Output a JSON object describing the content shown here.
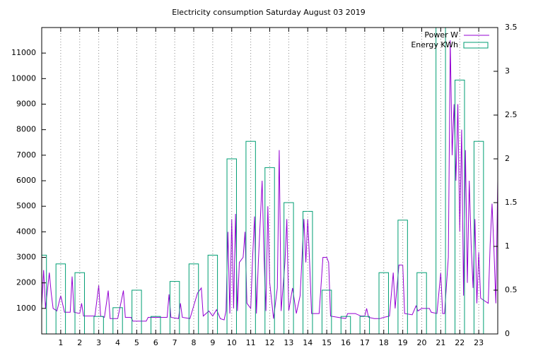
{
  "chart_data": {
    "type": "line",
    "title": "Electricity consumption Saturday August 03 2019",
    "xlim": [
      0,
      24
    ],
    "xticks": [
      1,
      2,
      3,
      4,
      5,
      6,
      7,
      8,
      9,
      10,
      11,
      12,
      13,
      14,
      15,
      16,
      17,
      18,
      19,
      20,
      21,
      22,
      23
    ],
    "ylim": [
      0,
      12000
    ],
    "yticks": [
      1000,
      2000,
      3000,
      4000,
      5000,
      6000,
      7000,
      8000,
      9000,
      10000,
      11000
    ],
    "y2lim": [
      0,
      3.5
    ],
    "y2ticks": [
      0,
      0.5,
      1,
      1.5,
      2,
      2.5,
      3,
      3.5
    ],
    "grid": "x",
    "legend": "top-right",
    "series": [
      {
        "name": "Power W",
        "type": "line",
        "color": "#9400d3",
        "x": [
          0,
          0.1,
          0.2,
          0.4,
          0.5,
          0.6,
          0.8,
          1.0,
          1.2,
          1.5,
          1.6,
          1.7,
          2.0,
          2.1,
          2.2,
          2.8,
          3.0,
          3.1,
          3.3,
          3.5,
          3.6,
          4.0,
          4.3,
          4.4,
          4.7,
          4.8,
          5.5,
          5.6,
          6.0,
          6.6,
          6.7,
          6.8,
          7.2,
          7.3,
          7.4,
          7.8,
          8.0,
          8.2,
          8.4,
          8.5,
          8.8,
          9.0,
          9.2,
          9.4,
          9.6,
          9.7,
          9.8,
          9.9,
          10.0,
          10.1,
          10.2,
          10.3,
          10.4,
          10.6,
          10.7,
          10.8,
          11.0,
          11.1,
          11.2,
          11.3,
          11.4,
          11.6,
          11.7,
          11.8,
          11.9,
          12.0,
          12.2,
          12.4,
          12.5,
          12.6,
          12.8,
          12.9,
          13.0,
          13.2,
          13.4,
          13.6,
          13.8,
          13.9,
          14.0,
          14.1,
          14.2,
          14.6,
          14.8,
          15.0,
          15.1,
          15.2,
          15.6,
          16.0,
          16.1,
          16.5,
          16.8,
          17.0,
          17.1,
          17.2,
          17.5,
          17.8,
          18.0,
          18.3,
          18.5,
          18.6,
          18.8,
          19.0,
          19.1,
          19.5,
          19.7,
          19.8,
          20.0,
          20.4,
          20.5,
          20.8,
          21.0,
          21.1,
          21.2,
          21.4,
          21.5,
          21.6,
          21.7,
          21.8,
          21.9,
          22.0,
          22.1,
          22.2,
          22.3,
          22.4,
          22.5,
          22.6,
          22.7,
          22.8,
          22.9,
          23.0,
          23.1,
          23.3,
          23.5,
          23.6,
          23.7,
          23.8,
          23.9,
          24.0
        ],
        "values": [
          1100,
          2500,
          1000,
          2400,
          1600,
          1000,
          900,
          1500,
          850,
          850,
          2250,
          850,
          800,
          1200,
          700,
          700,
          1900,
          700,
          650,
          1700,
          600,
          600,
          1700,
          650,
          650,
          500,
          500,
          650,
          650,
          650,
          1550,
          650,
          600,
          1200,
          650,
          600,
          1100,
          1600,
          1800,
          700,
          900,
          700,
          950,
          600,
          550,
          900,
          4000,
          800,
          4500,
          1000,
          4700,
          900,
          2800,
          3000,
          4000,
          1200,
          1000,
          3000,
          4600,
          800,
          2800,
          6000,
          3000,
          900,
          5000,
          2000,
          600,
          1800,
          7200,
          900,
          2800,
          4500,
          900,
          1800,
          800,
          1500,
          4500,
          2800,
          4500,
          2800,
          800,
          800,
          3000,
          3000,
          2800,
          700,
          650,
          600,
          800,
          800,
          700,
          700,
          1000,
          650,
          600,
          600,
          650,
          700,
          2400,
          1000,
          2700,
          2700,
          800,
          750,
          1100,
          900,
          1000,
          1000,
          850,
          800,
          2400,
          800,
          800,
          3000,
          11500,
          7000,
          9000,
          6000,
          9000,
          4000,
          8000,
          1500,
          7200,
          2000,
          6000,
          3500,
          1800,
          4500,
          1200,
          3200,
          1400,
          1300,
          1200,
          3500,
          5100,
          3300,
          1200,
          6000
        ]
      },
      {
        "name": "Energy KWh",
        "type": "bar",
        "axis": "y2",
        "color": "#009e73",
        "x": [
          0,
          1,
          2,
          3,
          4,
          5,
          6,
          7,
          8,
          9,
          10,
          11,
          12,
          13,
          14,
          15,
          16,
          17,
          18,
          19,
          20,
          21,
          22,
          23
        ],
        "values": [
          0.9,
          0.8,
          0.7,
          0.2,
          0.3,
          0.5,
          0.2,
          0.6,
          0.8,
          0.9,
          2.0,
          2.2,
          1.9,
          1.5,
          1.4,
          0.5,
          0.2,
          0.2,
          0.7,
          1.3,
          0.7,
          3.6,
          2.9,
          2.2
        ]
      }
    ]
  }
}
